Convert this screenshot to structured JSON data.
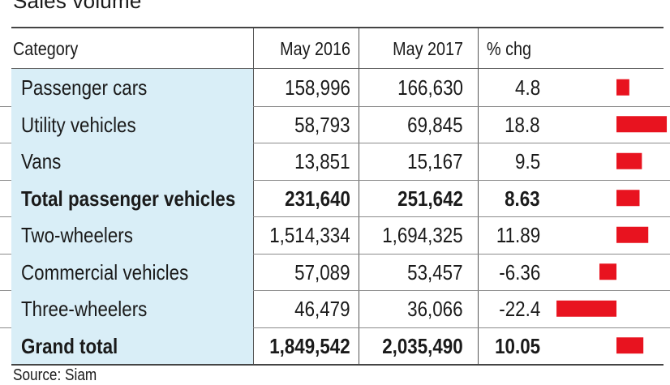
{
  "title": "Sales volume",
  "source": "Source: Siam",
  "colors": {
    "bar": "#e8131f",
    "category_bg": "#d9eef7",
    "rule": "#444444"
  },
  "chart_data": {
    "type": "table",
    "title": "Sales volume",
    "columns": [
      "Category",
      "May 2016",
      "May 2017",
      "% chg"
    ],
    "rows": [
      {
        "category": "Passenger cars",
        "may2016": "158,996",
        "may2017": "166,630",
        "chg": "4.8",
        "chg_value": 4.8,
        "bold": false
      },
      {
        "category": "Utility vehicles",
        "may2016": "58,793",
        "may2017": "69,845",
        "chg": "18.8",
        "chg_value": 18.8,
        "bold": false
      },
      {
        "category": "Vans",
        "may2016": "13,851",
        "may2017": "15,167",
        "chg": "9.5",
        "chg_value": 9.5,
        "bold": false
      },
      {
        "category": "Total passenger vehicles",
        "may2016": "231,640",
        "may2017": "251,642",
        "chg": "8.63",
        "chg_value": 8.63,
        "bold": true
      },
      {
        "category": "Two-wheelers",
        "may2016": "1,514,334",
        "may2017": "1,694,325",
        "chg": "11.89",
        "chg_value": 11.89,
        "bold": false
      },
      {
        "category": "Commercial vehicles",
        "may2016": "57,089",
        "may2017": "53,457",
        "chg": "-6.36",
        "chg_value": -6.36,
        "bold": false
      },
      {
        "category": "Three-wheelers",
        "may2016": "46,479",
        "may2017": "36,066",
        "chg": "-22.4",
        "chg_value": -22.4,
        "bold": false
      },
      {
        "category": "Grand total",
        "may2016": "1,849,542",
        "may2017": "2,035,490",
        "chg": "10.05",
        "chg_value": 10.05,
        "bold": true
      }
    ]
  },
  "rows_meta": [
    "row-passenger-cars",
    "row-utility-vehicles",
    "row-vans",
    "row-total-passenger-vehicles",
    "row-two-wheelers",
    "row-commercial-vehicles",
    "row-three-wheelers",
    "row-grand-total"
  ]
}
